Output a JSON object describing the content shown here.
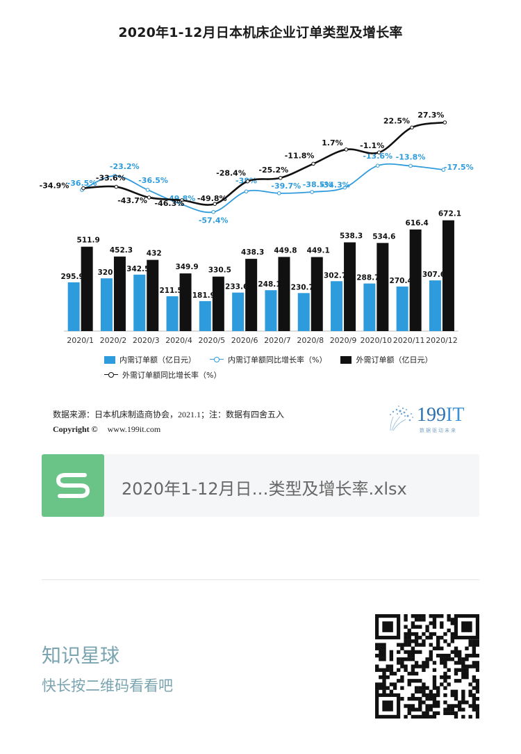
{
  "chart_data": {
    "type": "bar",
    "title": "2020年1-12月日本机床企业订单类型及增长率",
    "categories": [
      "2020/1",
      "2020/2",
      "2020/3",
      "2020/4",
      "2020/5",
      "2020/6",
      "2020/7",
      "2020/8",
      "2020/9",
      "2020/10",
      "2020/11",
      "2020/12"
    ],
    "series": [
      {
        "name": "内需订单额（亿日元）",
        "kind": "bar",
        "color": "#2e9bdc",
        "values": [
          295.9,
          320,
          342.5,
          211.5,
          181.9,
          233.6,
          248.1,
          230.7,
          302.7,
          288.7,
          270.4,
          307.6
        ],
        "labels": [
          "295.9",
          "320",
          "342.5",
          "211.5",
          "181.9",
          "233.6",
          "248.1",
          "230.7",
          "302.7",
          "288.7",
          "270.4",
          "307.6"
        ]
      },
      {
        "name": "外需订单额（亿日元）",
        "kind": "bar",
        "color": "#111111",
        "values": [
          511.9,
          452.3,
          432,
          349.9,
          330.5,
          438.3,
          449.8,
          449.1,
          538.3,
          534.6,
          616.4,
          672.1
        ],
        "labels": [
          "511.9",
          "452.3",
          "432",
          "349.9",
          "330.5",
          "438.3",
          "449.8",
          "449.1",
          "538.3",
          "534.6",
          "616.4",
          "672.1"
        ]
      },
      {
        "name": "内需订单额同比增长率（%）",
        "kind": "line",
        "color": "#2e9bdc",
        "values": [
          -36.5,
          -23.2,
          -36.5,
          -49.8,
          -57.4,
          -38,
          -39.7,
          -38.5,
          -34.3,
          -13.6,
          -13.8,
          -17.5
        ],
        "labels": [
          "-36.5%",
          "-23.2%",
          "-36.5%",
          "-49.8%",
          "-57.4%",
          "-38%",
          "-39.7%",
          "-38.5%",
          "-34.3%",
          "-13.6%",
          "-13.8%",
          "-17.5%"
        ]
      },
      {
        "name": "外需订单额同比增长率（%）",
        "kind": "line",
        "color": "#111111",
        "values": [
          -34.9,
          -33.6,
          -43.7,
          -46.3,
          -49.8,
          -28.4,
          -25.2,
          -11.8,
          1.7,
          -1.1,
          22.5,
          27.3
        ],
        "labels": [
          "-34.9%",
          "-33.6%",
          "-43.7%",
          "-46.3%",
          "-49.8%",
          "-28.4%",
          "-25.2%",
          "-11.8%",
          "1.7%",
          "-1.1%",
          "22.5%",
          "27.3%"
        ]
      }
    ],
    "legend_position": "bottom",
    "grid": false
  },
  "source": {
    "line": "数据来源：日本机床制造商协会，2021.1；注：数据有四舍五入",
    "copyright": "Copyright ©",
    "url": "www.199it.com"
  },
  "logo": {
    "main": "199",
    "accent": "IT",
    "sub": "数据驱动未来",
    "icon": "dandelion-icon"
  },
  "file_card": {
    "name": "2020年1-12月日…类型及增长率.xlsx",
    "icon": "spreadsheet-s-icon",
    "color": "#6ac387"
  },
  "footer": {
    "title": "知识星球",
    "subtitle": "快长按二维码看看吧"
  },
  "qr": {
    "icon": "qr-code-icon"
  }
}
